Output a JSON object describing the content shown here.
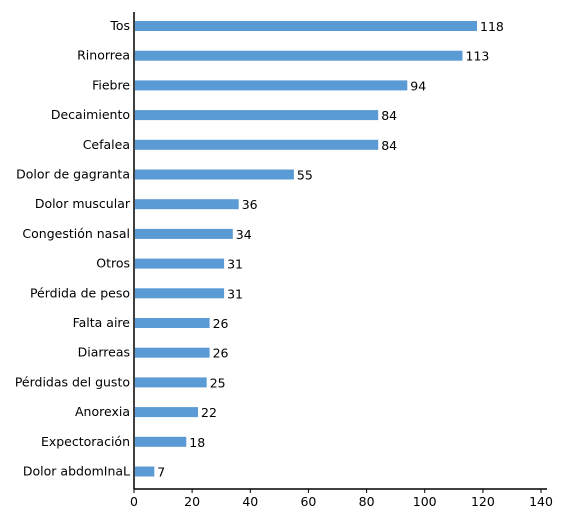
{
  "chart_data": {
    "type": "bar",
    "orientation": "horizontal",
    "categories": [
      "Tos",
      "Rinorrea",
      "Fiebre",
      "Decaimiento",
      "Cefalea",
      "Dolor de gagranta",
      "Dolor muscular",
      "Congestión nasal",
      "Otros",
      "Pérdida de peso",
      "Falta aire",
      "Diarreas",
      "Pérdidas del gusto",
      "Anorexia",
      "Expectoración",
      "Dolor abdomInaL"
    ],
    "values": [
      118,
      113,
      94,
      84,
      84,
      55,
      36,
      34,
      31,
      31,
      26,
      26,
      25,
      22,
      18,
      7
    ],
    "value_labels": [
      "118",
      "113",
      "94",
      "84",
      "84",
      "55",
      "36",
      "34",
      "31",
      "31",
      "26",
      "26",
      "25",
      "22",
      "18",
      "7"
    ],
    "xlim": [
      0,
      140
    ],
    "xticks": [
      0,
      20,
      40,
      60,
      80,
      100,
      120,
      140
    ],
    "xtick_labels": [
      "0",
      "20",
      "40",
      "60",
      "80",
      "100",
      "120",
      "140"
    ],
    "title": "",
    "xlabel": "",
    "ylabel": "",
    "grid": false,
    "legend": "none",
    "bar_color": "#5b9bd5"
  }
}
